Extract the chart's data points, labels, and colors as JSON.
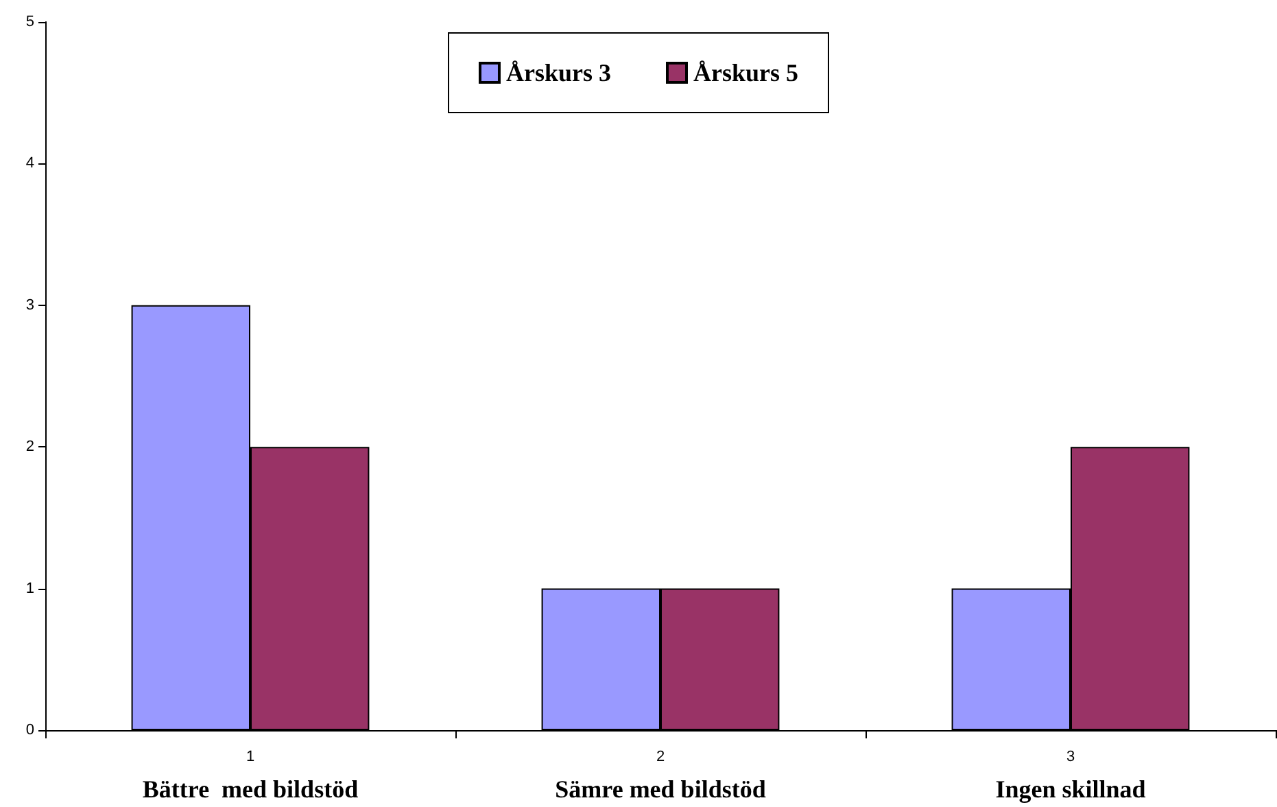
{
  "chart_data": {
    "type": "bar",
    "categories": [
      "1",
      "2",
      "3"
    ],
    "series": [
      {
        "name": "Årskurs 3",
        "color": "#9999ff",
        "values": [
          3,
          1,
          1
        ]
      },
      {
        "name": "Årskurs 5",
        "color": "#993366",
        "values": [
          2,
          1,
          2
        ]
      }
    ],
    "ylim": [
      0,
      5
    ],
    "yticks": [
      0,
      1,
      2,
      3,
      4,
      5
    ],
    "grid": false,
    "legend": "top",
    "annotations": [
      "Bättre  med bildstöd",
      "Sämre med bildstöd",
      "Ingen skillnad"
    ]
  }
}
